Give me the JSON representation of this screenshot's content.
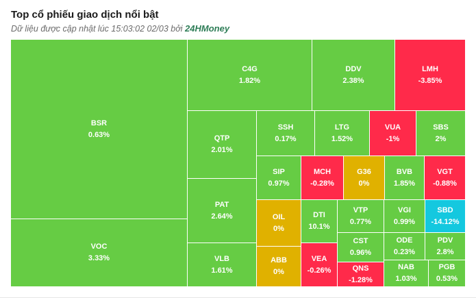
{
  "header": {
    "title": "Top cổ phiếu giao dịch nổi bật",
    "subtitle_prefix": "Dữ liệu được cập nhật lúc 15:03:02 02/03 bởi ",
    "brand": "24HMoney"
  },
  "colors": {
    "up": "#66cc44",
    "down": "#ff2a4a",
    "flat": "#e0b100",
    "floor": "#14c8df"
  },
  "treemap": {
    "tiles": {
      "bsr": {
        "ticker": "BSR",
        "change": "0.63%",
        "status": "up"
      },
      "voc": {
        "ticker": "VOC",
        "change": "3.33%",
        "status": "up"
      },
      "c4g": {
        "ticker": "C4G",
        "change": "1.82%",
        "status": "up"
      },
      "ddv": {
        "ticker": "DDV",
        "change": "2.38%",
        "status": "up"
      },
      "lmh": {
        "ticker": "LMH",
        "change": "-3.85%",
        "status": "down"
      },
      "qtp": {
        "ticker": "QTP",
        "change": "2.01%",
        "status": "up"
      },
      "pat": {
        "ticker": "PAT",
        "change": "2.64%",
        "status": "up"
      },
      "vlb": {
        "ticker": "VLB",
        "change": "1.61%",
        "status": "up"
      },
      "ssh": {
        "ticker": "SSH",
        "change": "0.17%",
        "status": "up"
      },
      "ltg": {
        "ticker": "LTG",
        "change": "1.52%",
        "status": "up"
      },
      "vua": {
        "ticker": "VUA",
        "change": "-1%",
        "status": "down"
      },
      "sbs": {
        "ticker": "SBS",
        "change": "2%",
        "status": "up"
      },
      "sip": {
        "ticker": "SIP",
        "change": "0.97%",
        "status": "up"
      },
      "mch": {
        "ticker": "MCH",
        "change": "-0.28%",
        "status": "down"
      },
      "g36": {
        "ticker": "G36",
        "change": "0%",
        "status": "flat"
      },
      "bvb": {
        "ticker": "BVB",
        "change": "1.85%",
        "status": "up"
      },
      "vgt": {
        "ticker": "VGT",
        "change": "-0.88%",
        "status": "down"
      },
      "oil": {
        "ticker": "OIL",
        "change": "0%",
        "status": "flat"
      },
      "dti": {
        "ticker": "DTI",
        "change": "10.1%",
        "status": "up"
      },
      "vtp": {
        "ticker": "VTP",
        "change": "0.77%",
        "status": "up"
      },
      "vgi": {
        "ticker": "VGI",
        "change": "0.99%",
        "status": "up"
      },
      "sbd": {
        "ticker": "SBD",
        "change": "-14.12%",
        "status": "floor"
      },
      "cst": {
        "ticker": "CST",
        "change": "0.96%",
        "status": "up"
      },
      "ode": {
        "ticker": "ODE",
        "change": "0.23%",
        "status": "up"
      },
      "pdv": {
        "ticker": "PDV",
        "change": "2.8%",
        "status": "up"
      },
      "abb": {
        "ticker": "ABB",
        "change": "0%",
        "status": "flat"
      },
      "vea": {
        "ticker": "VEA",
        "change": "-0.26%",
        "status": "down"
      },
      "qns": {
        "ticker": "QNS",
        "change": "-1.28%",
        "status": "down"
      },
      "nab": {
        "ticker": "NAB",
        "change": "1.03%",
        "status": "up"
      },
      "pgb": {
        "ticker": "PGB",
        "change": "0.53%",
        "status": "up"
      }
    }
  }
}
